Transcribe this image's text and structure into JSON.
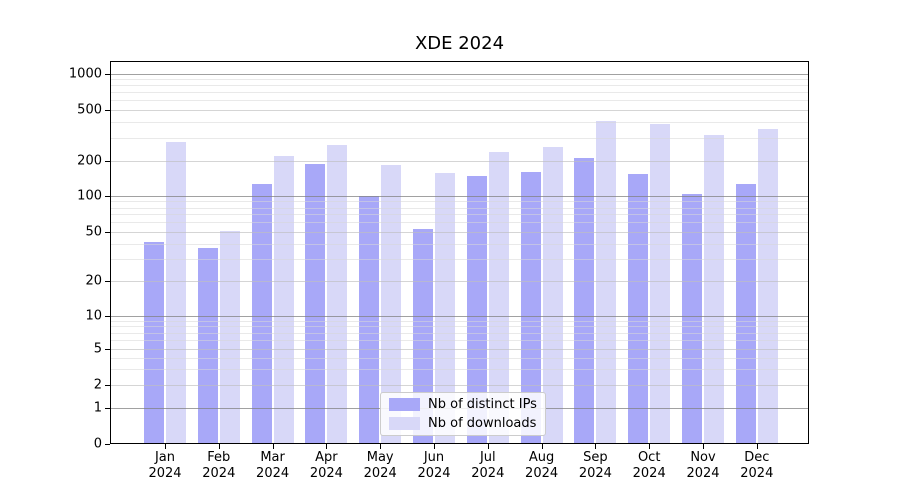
{
  "title": "XDE 2024",
  "chart_data": {
    "type": "bar",
    "title": "XDE 2024",
    "categories": [
      "Jan 2024",
      "Feb 2024",
      "Mar 2024",
      "Apr 2024",
      "May 2024",
      "Jun 2024",
      "Jul 2024",
      "Aug 2024",
      "Sep 2024",
      "Oct 2024",
      "Nov 2024",
      "Dec 2024"
    ],
    "series": [
      {
        "name": "Nb of distinct IPs",
        "color": "#a8a8f8",
        "values": [
          41,
          37,
          126,
          190,
          100,
          53,
          149,
          162,
          210,
          155,
          105,
          127
        ]
      },
      {
        "name": "Nb of downloads",
        "color": "#d8d8f8",
        "values": [
          280,
          51,
          220,
          265,
          185,
          158,
          237,
          258,
          410,
          390,
          320,
          355
        ]
      }
    ],
    "yscale": "symlog",
    "yticks": [
      0,
      1,
      2,
      5,
      10,
      20,
      50,
      100,
      200,
      500,
      1000
    ],
    "ylim": [
      0,
      1260
    ],
    "grid": "both",
    "legend_position": "bottom-center"
  },
  "legend": {
    "items": [
      {
        "label": "Nb of distinct IPs",
        "color": "#a8a8f8"
      },
      {
        "label": "Nb of downloads",
        "color": "#d8d8f8"
      }
    ]
  }
}
